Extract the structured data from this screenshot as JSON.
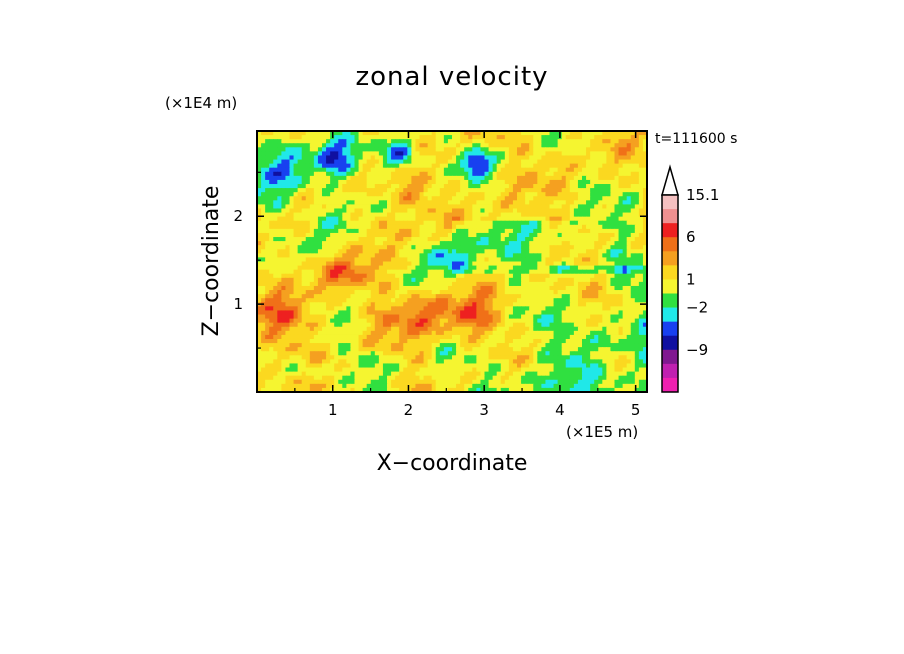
{
  "chart_data": {
    "type": "heatmap",
    "title": "zonal velocity",
    "xlabel": "X−coordinate",
    "ylabel": "Z−coordinate",
    "x_unit": "(×1E5 m)",
    "y_unit": "(×1E4 m)",
    "time_label": "t=111600 s",
    "xlim": [
      0.0,
      5.15
    ],
    "ylim": [
      0.0,
      2.97
    ],
    "x_ticks": [
      "1",
      "2",
      "3",
      "4",
      "5"
    ],
    "y_ticks": [
      "1",
      "2"
    ],
    "colorbar": {
      "labels": [
        "15.1",
        "6",
        "1",
        "−2",
        "−9"
      ],
      "levels_top_to_bottom": [
        {
          "color": "#f4c0c0"
        },
        {
          "color": "#f09090"
        },
        {
          "color": "#ee2020"
        },
        {
          "color": "#f07018"
        },
        {
          "color": "#f5a020"
        },
        {
          "color": "#fbd820"
        },
        {
          "color": "#f5f530"
        },
        {
          "color": "#30e040"
        },
        {
          "color": "#20e8e8"
        },
        {
          "color": "#1840f0"
        },
        {
          "color": "#1010a0"
        },
        {
          "color": "#801890"
        },
        {
          "color": "#c020b0"
        },
        {
          "color": "#f020b0"
        }
      ],
      "extend_top": true
    },
    "field_palette": [
      "#1010a0",
      "#1840f0",
      "#20e8e8",
      "#30e040",
      "#f5f530",
      "#fbd820",
      "#f5a020",
      "#f07018",
      "#ee2020"
    ]
  }
}
